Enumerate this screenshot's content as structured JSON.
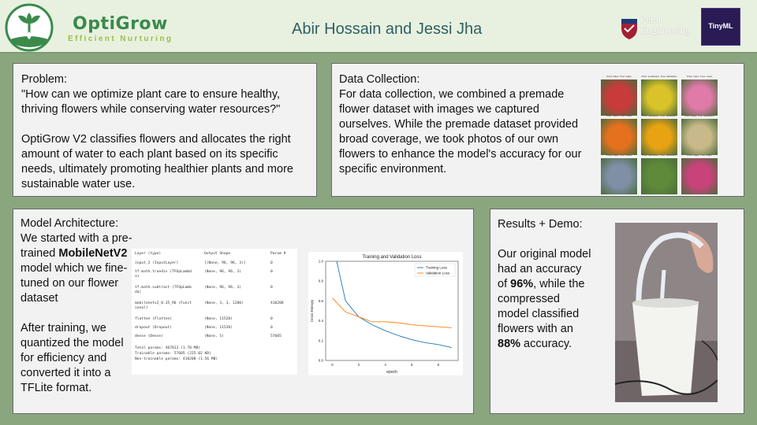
{
  "header": {
    "brand": "OptiGrow",
    "tagline": "Efficient Nurturing",
    "authors": "Abir Hossain and Jessi Jha",
    "penn_line1": "Penn",
    "penn_line2": "Engineering",
    "tinyml_label": "TinyML"
  },
  "problem": {
    "heading": "Problem:",
    "question": "\"How can we optimize plant care to ensure healthy, thriving flowers while conserving water resources?\"",
    "body": "OptiGrow V2 classifies flowers and allocates the right amount of water to each plant based on its specific needs, ultimately promoting healthier plants and more sustainable water use."
  },
  "data_collection": {
    "heading": "Data Collection:",
    "body": "For data collection, we combined a premade flower dataset with images we captured ourselves. While the premade dataset provided broad coverage, we took photos of our own flowers to enhance the model's accuracy for our specific environment.",
    "captions": [
      "Pred: tulips, True: tulips",
      "Pred: sunflowers, True: dandelion",
      "Pred: roses, True: roses",
      "Pred: roses, True: roses",
      "Pred: dandelion, True: dandelion",
      "Pred: daisy, True: dandelion",
      "Pred: tulips, True: roses",
      "Pred: dandelion, True: dandelion",
      "Pred: tulips, True: tulips"
    ],
    "image_colors": [
      "#c73b3b",
      "#d9c22a",
      "#e07aa8",
      "#e5711f",
      "#e8a313",
      "#c9b98a",
      "#7e8fa6",
      "#5e8a3a",
      "#c8437a"
    ]
  },
  "model": {
    "heading": "Model Architecture:",
    "intro_1": "We started with a pre-trained ",
    "intro_bold": "MobileNetV2",
    "intro_2": " model which we fine-tuned on our flower dataset",
    "body_2": "After training, we quantized the model for efficiency and converted it into a TFLite format.",
    "summary_headers": [
      "Layer (type)",
      "Output Shape",
      "Param #"
    ],
    "summary_rows": [
      [
        "input_2 (InputLayer)",
        "[(None, 96, 96, 3)]",
        "0"
      ],
      [
        "tf.math.truediv (TFOpLambd",
        "(None, 96, 96, 3)",
        "0"
      ],
      [
        "a)",
        "",
        ""
      ],
      [
        "tf.math.subtract (TFOpLamb",
        "(None, 96, 96, 3)",
        "0"
      ],
      [
        "da)",
        "",
        ""
      ],
      [
        "mobilenetv2_0.35_96 (Funct",
        "(None, 3, 3, 1280)",
        "410208"
      ],
      [
        "ional)",
        "",
        ""
      ],
      [
        "flatten (Flatten)",
        "(None, 11520)",
        "0"
      ],
      [
        "dropout (Dropout)",
        "(None, 11520)",
        "0"
      ],
      [
        "dense (Dense)",
        "(None, 5)",
        "57605"
      ]
    ],
    "summary_totals": [
      "Total params: 467813 (1.78 MB)",
      "Trainable params: 57605 (225.02 KB)",
      "Non-trainable params: 410208 (1.56 MB)"
    ]
  },
  "chart_data": {
    "type": "line",
    "title": "Training and Validation Loss",
    "xlabel": "epoch",
    "ylabel": "Cross Entropy",
    "xlim": [
      -0.5,
      9.5
    ],
    "ylim": [
      0,
      1.0
    ],
    "x_ticks": [
      0,
      2,
      4,
      6,
      8
    ],
    "y_ticks": [
      0.0,
      0.2,
      0.4,
      0.6,
      0.8,
      1.0
    ],
    "legend": "top-right",
    "x": [
      0,
      1,
      2,
      3,
      4,
      5,
      6,
      7,
      8,
      9
    ],
    "series": [
      {
        "name": "Training Loss",
        "color": "#1f77b4",
        "values": [
          1.2,
          0.6,
          0.44,
          0.36,
          0.3,
          0.25,
          0.21,
          0.18,
          0.16,
          0.13
        ]
      },
      {
        "name": "Validation Loss",
        "color": "#ff7f0e",
        "values": [
          0.63,
          0.49,
          0.44,
          0.39,
          0.39,
          0.38,
          0.36,
          0.35,
          0.34,
          0.33
        ]
      }
    ]
  },
  "results": {
    "heading": "Results + Demo:",
    "l1": "Our original model had an accuracy of ",
    "b1": "96%",
    "l2": ", while the compressed model classified flowers with an ",
    "b2": "88%",
    "l3": " accuracy."
  }
}
